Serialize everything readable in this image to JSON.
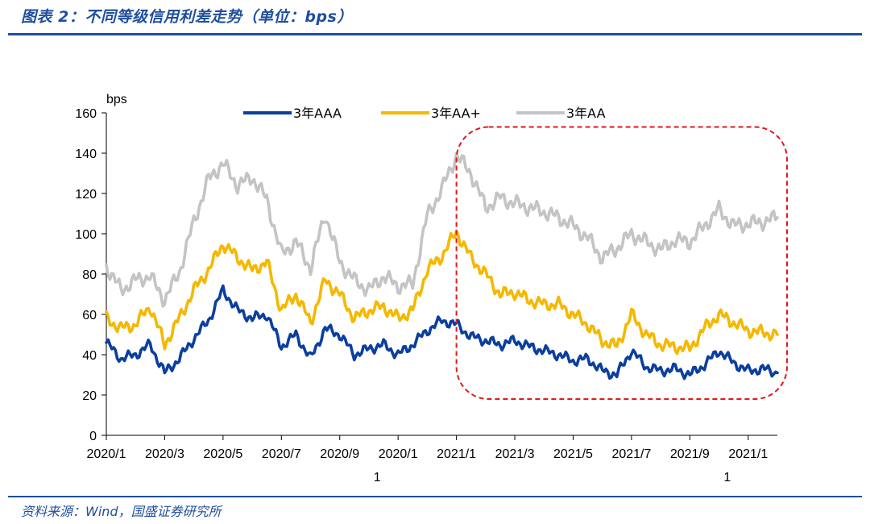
{
  "figure": {
    "title": "图表 2：不同等级信用利差走势（单位：bps）",
    "source": "资料来源：Wind，国盛证券研究所"
  },
  "colors": {
    "aaa": "#0b3f9e",
    "aa_plus": "#f5b800",
    "aa": "#c4c4c4",
    "highlight": "#e0191e",
    "accent": "#1f4e9c"
  },
  "chart_data": {
    "type": "line",
    "ylabel": "bps",
    "ylim": [
      0,
      160
    ],
    "yticks": [
      0,
      20,
      40,
      60,
      80,
      100,
      120,
      140,
      160
    ],
    "xlim": [
      0,
      23
    ],
    "xticks": [
      {
        "x": 0,
        "line1": "2020/1",
        "line2": ""
      },
      {
        "x": 2,
        "line1": "2020/3",
        "line2": ""
      },
      {
        "x": 4,
        "line1": "2020/5",
        "line2": ""
      },
      {
        "x": 6,
        "line1": "2020/7",
        "line2": ""
      },
      {
        "x": 8,
        "line1": "2020/9",
        "line2": ""
      },
      {
        "x": 10,
        "line1": "2020/1",
        "line2": "1"
      },
      {
        "x": 12,
        "line1": "2021/1",
        "line2": ""
      },
      {
        "x": 14,
        "line1": "2021/3",
        "line2": ""
      },
      {
        "x": 16,
        "line1": "2021/5",
        "line2": ""
      },
      {
        "x": 18,
        "line1": "2021/7",
        "line2": ""
      },
      {
        "x": 20,
        "line1": "2021/9",
        "line2": ""
      },
      {
        "x": 22,
        "line1": "2021/1",
        "line2": "1"
      }
    ],
    "legend_position": "top",
    "highlight_box": {
      "x": [
        12,
        23
      ],
      "y": [
        18,
        153
      ]
    },
    "x": [
      0,
      0.5,
      1,
      1.5,
      2,
      2.5,
      3,
      3.5,
      4,
      4.5,
      5,
      5.5,
      6,
      6.5,
      7,
      7.5,
      8,
      8.5,
      9,
      9.5,
      10,
      10.5,
      11,
      11.5,
      12,
      12.5,
      13,
      13.5,
      14,
      14.5,
      15,
      15.5,
      16,
      16.5,
      17,
      17.5,
      18,
      18.5,
      19,
      19.5,
      20,
      20.5,
      21,
      21.5,
      22,
      22.5,
      23
    ],
    "series": [
      {
        "name": "3年AAA",
        "values": [
          46,
          38,
          40,
          45,
          31,
          38,
          48,
          57,
          72,
          62,
          58,
          60,
          44,
          50,
          38,
          53,
          50,
          40,
          43,
          45,
          40,
          45,
          52,
          57,
          55,
          49,
          47,
          45,
          47,
          44,
          42,
          40,
          37,
          38,
          32,
          30,
          42,
          34,
          32,
          33,
          30,
          35,
          42,
          36,
          32,
          33,
          31
        ]
      },
      {
        "name": "3年AA+",
        "values": [
          58,
          53,
          55,
          64,
          45,
          58,
          72,
          82,
          95,
          88,
          82,
          86,
          62,
          70,
          56,
          77,
          70,
          58,
          62,
          64,
          58,
          62,
          82,
          89,
          101,
          88,
          80,
          70,
          71,
          67,
          65,
          65,
          60,
          55,
          47,
          44,
          60,
          50,
          45,
          44,
          43,
          53,
          60,
          56,
          52,
          51,
          50
        ]
      },
      {
        "name": "3年AA",
        "values": [
          84,
          72,
          77,
          79,
          67,
          81,
          106,
          127,
          135,
          124,
          128,
          117,
          90,
          96,
          83,
          110,
          86,
          77,
          72,
          79,
          74,
          75,
          109,
          122,
          139,
          130,
          113,
          118,
          115,
          113,
          111,
          108,
          104,
          98,
          88,
          93,
          100,
          96,
          92,
          97,
          96,
          104,
          112,
          104,
          105,
          106,
          108
        ]
      }
    ]
  }
}
